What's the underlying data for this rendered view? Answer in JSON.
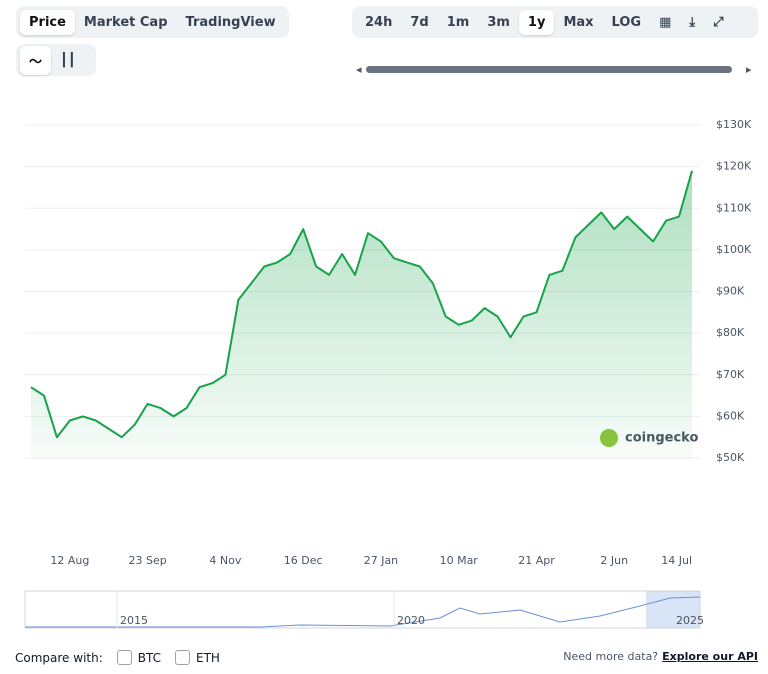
{
  "ui": {
    "tabs": [
      "Price",
      "Market Cap",
      "TradingView"
    ],
    "ranges": [
      "24h",
      "7d",
      "1m",
      "3m",
      "1y",
      "Max",
      "LOG"
    ],
    "compare_label": "Compare with:",
    "compare_options": [
      "BTC",
      "ETH"
    ],
    "footer_text": "Need more data?",
    "footer_link": "Explore our API",
    "watermark": "coingecko",
    "navigator_labels": [
      "2015",
      "2020",
      "2025"
    ]
  },
  "chart_data": {
    "type": "line",
    "categories": [
      null,
      null,
      null,
      "12 Aug",
      null,
      null,
      null,
      null,
      null,
      "23 Sep",
      null,
      null,
      null,
      null,
      null,
      "4 Nov",
      null,
      null,
      null,
      null,
      null,
      "16 Dec",
      null,
      null,
      null,
      null,
      null,
      "27 Jan",
      null,
      null,
      null,
      null,
      null,
      "10 Mar",
      null,
      null,
      null,
      null,
      null,
      "21 Apr",
      null,
      null,
      null,
      null,
      null,
      "2 Jun",
      null,
      null,
      null,
      null,
      null,
      "14 Jul"
    ],
    "series": [
      {
        "name": "Price",
        "color": "#16a34a",
        "values": [
          67000,
          65000,
          55000,
          59000,
          60000,
          59000,
          57000,
          55000,
          58000,
          63000,
          62000,
          60000,
          62000,
          67000,
          68000,
          70000,
          88000,
          92000,
          96000,
          97000,
          99000,
          105000,
          96000,
          94000,
          99000,
          94000,
          104000,
          102000,
          98000,
          97000,
          96000,
          92000,
          84000,
          82000,
          83000,
          86000,
          84000,
          79000,
          84000,
          85000,
          94000,
          95000,
          103000,
          106000,
          109000,
          105000,
          108000,
          105000,
          102000,
          107000,
          108000,
          119000
        ]
      }
    ],
    "ylim": [
      50000,
      130000
    ],
    "yticks": [
      {
        "value": 50000,
        "label": "$50K"
      },
      {
        "value": 60000,
        "label": "$60K"
      },
      {
        "value": 70000,
        "label": "$70K"
      },
      {
        "value": 80000,
        "label": "$80K"
      },
      {
        "value": 90000,
        "label": "$90K"
      },
      {
        "value": 100000,
        "label": "$100K"
      },
      {
        "value": 110000,
        "label": "$110K"
      },
      {
        "value": 120000,
        "label": "$120K"
      },
      {
        "value": 130000,
        "label": "$130K"
      }
    ],
    "grid": true
  }
}
